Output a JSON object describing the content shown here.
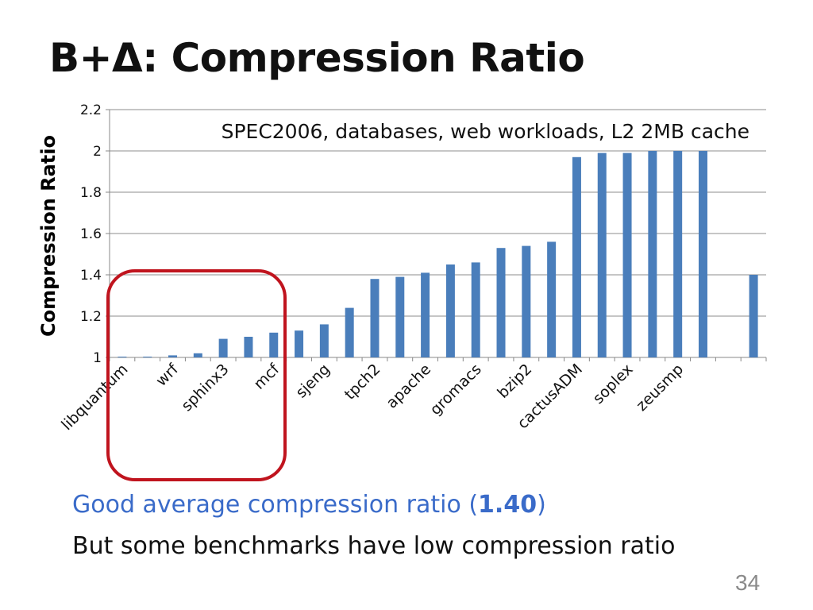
{
  "slide": {
    "title": "B+Δ: Compression Ratio",
    "page_number": "34"
  },
  "bullets": {
    "line1_pre": "Good average compression ratio (",
    "line1_value": "1.40",
    "line1_post": ")",
    "line2": "But some benchmarks have low compression ratio"
  },
  "highlight_box": {
    "color": "#c0141e"
  },
  "chart_data": {
    "type": "bar",
    "annotation": "SPEC2006, databases, web workloads, L2 2MB cache",
    "ylabel": "Compression Ratio",
    "xlabel": "",
    "ylim": [
      1,
      2.2
    ],
    "yticks": [
      "1",
      "1.2",
      "1.4",
      "1.6",
      "1.8",
      "2",
      "2.2"
    ],
    "grid": true,
    "bar_color": "#4a7ebb",
    "categories": [
      "libquantum",
      "",
      "wrf",
      "",
      "sphinx3",
      "",
      "mcf",
      "",
      "sjeng",
      "",
      "tpch2",
      "",
      "apache",
      "",
      "gromacs",
      "",
      "bzip2",
      "",
      "cactusADM",
      "",
      "soplex",
      "",
      "zeusmp",
      "",
      "",
      ""
    ],
    "values": [
      1.0,
      1.0,
      1.01,
      1.02,
      1.09,
      1.1,
      1.12,
      1.13,
      1.16,
      1.24,
      1.38,
      1.39,
      1.41,
      1.45,
      1.46,
      1.53,
      1.54,
      1.56,
      1.97,
      1.99,
      1.99,
      2.0,
      2.0,
      2.0,
      null,
      1.4
    ]
  }
}
